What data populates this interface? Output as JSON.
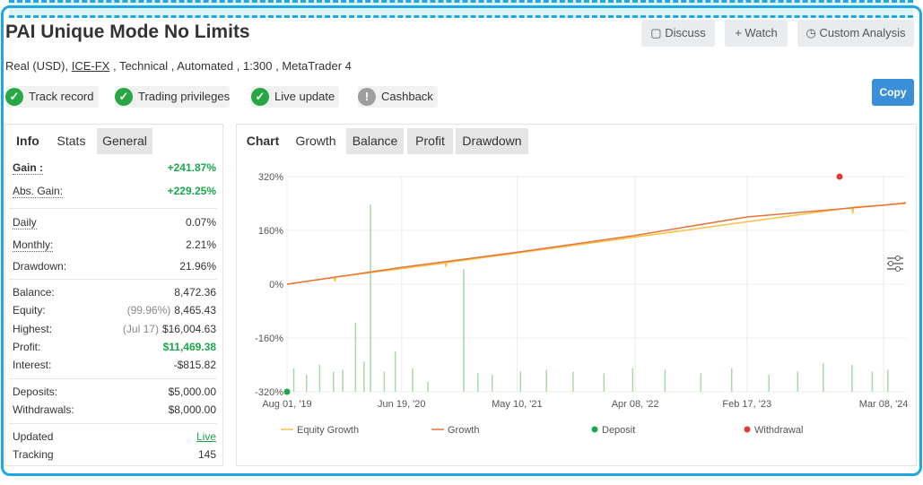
{
  "header": {
    "title": "PAI Unique Mode No Limits",
    "meta_prefix": "Real (USD),",
    "broker": "ICE-FX",
    "meta_suffix": ", Technical , Automated , 1:300 , MetaTrader 4"
  },
  "buttons": {
    "discuss": "Discuss",
    "watch": "Watch",
    "custom": "Custom Analysis",
    "copy": "Copy"
  },
  "badges": [
    {
      "label": "Track record",
      "ok": true
    },
    {
      "label": "Trading privileges",
      "ok": true
    },
    {
      "label": "Live update",
      "ok": true
    },
    {
      "label": "Cashback",
      "ok": false
    }
  ],
  "stats_tabs": [
    "Info",
    "Stats",
    "General"
  ],
  "stats": [
    [
      {
        "label": "Gain :",
        "value": "+241.87%",
        "style": "green"
      },
      {
        "label": "Abs. Gain:",
        "value": "+229.25%",
        "style": "green"
      }
    ],
    [
      {
        "label": "Daily",
        "value": "0.07%"
      },
      {
        "label": "Monthly:",
        "value": "2.21%"
      },
      {
        "label": "Drawdown:",
        "value": "21.96%"
      }
    ],
    [
      {
        "label": "Balance:",
        "value": "8,472.36"
      },
      {
        "label": "Equity:",
        "note": "(99.96%)",
        "value": "8,465.43"
      },
      {
        "label": "Highest:",
        "note": "(Jul 17)",
        "value": "$16,004.63"
      },
      {
        "label": "Profit:",
        "value": "$11,469.38",
        "style": "green"
      },
      {
        "label": "Interest:",
        "value": "-$815.82"
      }
    ],
    [
      {
        "label": "Deposits:",
        "value": "$5,000.00"
      },
      {
        "label": "Withdrawals:",
        "value": "$8,000.00"
      }
    ],
    [
      {
        "label": "Updated",
        "value": "Live",
        "style": "link"
      },
      {
        "label": "Tracking",
        "value": "145"
      }
    ]
  ],
  "chart_tabs": [
    "Chart",
    "Growth",
    "Balance",
    "Profit",
    "Drawdown"
  ],
  "chart_data": {
    "type": "line",
    "xlim": [
      "2019-08-01",
      "2024-05-10"
    ],
    "xticks": [
      {
        "value": "2019-08-01",
        "label": "Aug 01, '19"
      },
      {
        "value": "2020-06-19",
        "label": "Jun 19, '20"
      },
      {
        "value": "2021-05-10",
        "label": "May 10, '21"
      },
      {
        "value": "2022-04-08",
        "label": "Apr 08, '22"
      },
      {
        "value": "2023-02-17",
        "label": "Feb 17, '23"
      },
      {
        "value": "2024-03-08",
        "label": "Mar 08, '24"
      }
    ],
    "ylim": [
      -320,
      320
    ],
    "yticks": [
      {
        "value": 320,
        "label": "320%"
      },
      {
        "value": 160,
        "label": "160%"
      },
      {
        "value": 0,
        "label": "0%"
      },
      {
        "value": -160,
        "label": "-160%"
      },
      {
        "value": -320,
        "label": "-320%"
      }
    ],
    "grid": true,
    "bars": {
      "color": "#a8d8a8",
      "x": [
        "2019-08-20",
        "2019-09-25",
        "2019-11-01",
        "2019-12-10",
        "2020-01-05",
        "2020-02-10",
        "2020-03-05",
        "2020-03-23",
        "2020-05-01",
        "2020-06-01",
        "2020-07-20",
        "2020-09-01",
        "2020-12-11",
        "2021-01-20",
        "2021-03-01",
        "2021-05-20",
        "2021-08-01",
        "2021-10-15",
        "2022-01-10",
        "2022-04-01",
        "2022-07-01",
        "2022-10-10",
        "2023-01-05",
        "2023-04-20",
        "2023-07-10",
        "2023-09-20",
        "2023-12-10",
        "2024-02-05",
        "2024-03-20"
      ],
      "values": [
        -250,
        -270,
        -240,
        -260,
        -255,
        -115,
        -230,
        237,
        -260,
        -200,
        -250,
        -290,
        45,
        -265,
        -270,
        -260,
        -255,
        -260,
        -265,
        -250,
        -255,
        -265,
        -250,
        -270,
        -260,
        -235,
        -240,
        -260,
        -255
      ]
    },
    "series": [
      {
        "name": "Equity Growth",
        "kind": "line",
        "color": "#f5c242",
        "x": [
          "2019-08-01",
          "2019-12-12",
          "2019-12-14",
          "2019-12-16",
          "2020-10-20",
          "2020-10-22",
          "2020-10-24",
          "2023-12-10",
          "2023-12-12",
          "2023-12-14",
          "2024-05-10"
        ],
        "values": [
          0,
          20,
          8,
          21,
          63,
          52,
          64,
          228,
          210,
          229,
          240
        ]
      },
      {
        "name": "Growth",
        "kind": "line",
        "color": "#e8743b",
        "x": [
          "2019-08-01",
          "2020-06-19",
          "2021-05-10",
          "2022-04-08",
          "2023-02-17",
          "2024-03-08",
          "2024-05-10"
        ],
        "values": [
          0,
          50,
          95,
          145,
          200,
          235,
          242
        ]
      },
      {
        "name": "Deposit",
        "kind": "point",
        "color": "#1aa84a",
        "x": [
          "2019-08-01"
        ],
        "values": [
          -320
        ]
      },
      {
        "name": "Withdrawal",
        "kind": "point",
        "color": "#e53935",
        "x": [
          "2023-11-05"
        ],
        "values": [
          320
        ]
      }
    ]
  }
}
